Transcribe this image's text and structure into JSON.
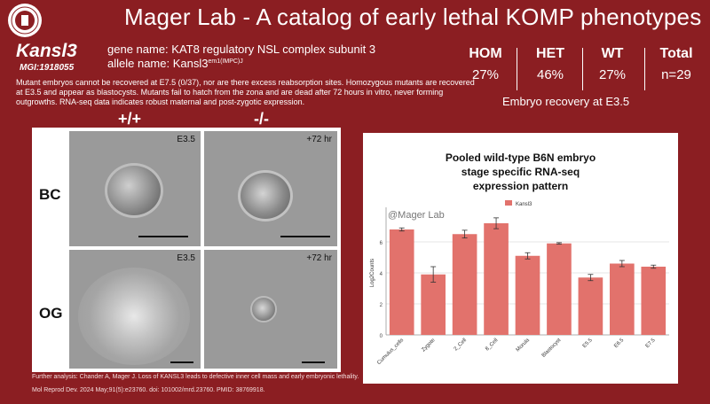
{
  "header": {
    "title": "Mager Lab - A catalog of early lethal KOMP phenotypes"
  },
  "gene": {
    "symbol": "Kansl3",
    "mgi": "MGI:1918055",
    "gene_name": "gene name: KAT8 regulatory NSL complex subunit 3",
    "allele_prefix": "allele name: Kansl3",
    "allele_sup": "em1(IMPC)J"
  },
  "description": "Mutant embryos cannot be recovered at E7.5 (0/37), nor are there excess reabsorption sites. Homozygous mutants are recovered at E3.5 and appear as blastocysts. Mutants fail to hatch from the zona and are dead after 72 hours in vitro, never forming outgrowths. RNA-seq data indicates robust maternal and post-zygotic expression.",
  "stats": {
    "columns": [
      {
        "label": "HOM",
        "value": "27%"
      },
      {
        "label": "HET",
        "value": "46%"
      },
      {
        "label": "WT",
        "value": "27%"
      },
      {
        "label": "Total",
        "value": "n=29"
      }
    ],
    "caption": "Embryo recovery at E3.5"
  },
  "images": {
    "genotype_wt": "+/+",
    "genotype_mut": "-/-",
    "row_bc": "BC",
    "row_og": "OG",
    "tags": [
      "E3.5",
      "+72 hr",
      "E3.5",
      "+72 hr"
    ]
  },
  "chart_data": {
    "type": "bar",
    "title_lines": [
      "Pooled wild-type B6N embryo",
      "stage specific RNA-seq",
      "expression pattern"
    ],
    "watermark": "@Mager Lab",
    "legend": "Kansl3",
    "ylabel": "Log2Counts",
    "xlabel": "",
    "ylim": [
      0,
      8
    ],
    "yticks": [
      "0",
      "2",
      "4",
      "6"
    ],
    "categories": [
      "Cumulus_cells",
      "Zygote",
      "2_Cell",
      "8_Cell",
      "Morula",
      "Blastocyst",
      "E5.5",
      "E6.5",
      "E7.5"
    ],
    "values": [
      6.8,
      3.9,
      6.5,
      7.2,
      5.1,
      5.9,
      3.7,
      4.6,
      4.4
    ],
    "errors": [
      0.1,
      0.5,
      0.25,
      0.35,
      0.2,
      0.05,
      0.2,
      0.2,
      0.1
    ],
    "bar_color": "#e2726c"
  },
  "footer": {
    "line1": "Further analysis:  Chander A, Mager J. Loss of KANSL3 leads to defective inner cell mass and early embryonic lethality.",
    "line2": "Mol Reprod Dev. 2024 May;91(5):e23760. doi: 101002/mrd.23760. PMID: 38769918."
  }
}
